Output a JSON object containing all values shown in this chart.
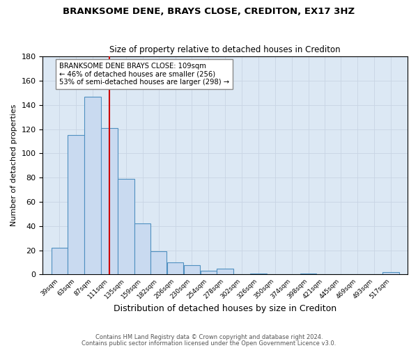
{
  "title": "BRANKSOME DENE, BRAYS CLOSE, CREDITON, EX17 3HZ",
  "subtitle": "Size of property relative to detached houses in Crediton",
  "xlabel": "Distribution of detached houses by size in Crediton",
  "ylabel": "Number of detached properties",
  "bin_labels": [
    "39sqm",
    "63sqm",
    "87sqm",
    "111sqm",
    "135sqm",
    "159sqm",
    "182sqm",
    "206sqm",
    "230sqm",
    "254sqm",
    "278sqm",
    "302sqm",
    "326sqm",
    "350sqm",
    "374sqm",
    "398sqm",
    "421sqm",
    "445sqm",
    "469sqm",
    "493sqm",
    "517sqm"
  ],
  "tick_positions": [
    39,
    63,
    87,
    111,
    135,
    159,
    182,
    206,
    230,
    254,
    278,
    302,
    326,
    350,
    374,
    398,
    421,
    445,
    469,
    493,
    517
  ],
  "counts": [
    22,
    115,
    147,
    121,
    79,
    42,
    19,
    10,
    8,
    3,
    5,
    0,
    1,
    0,
    0,
    1,
    0,
    0,
    0,
    0,
    2
  ],
  "bar_facecolor": "#c9daf0",
  "bar_edgecolor": "#4f90c0",
  "grid_color": "#c8d4e4",
  "bg_color": "#dce8f4",
  "marker_x": 111,
  "marker_color": "#cc0000",
  "annotation_text": "BRANKSOME DENE BRAYS CLOSE: 109sqm\n← 46% of detached houses are smaller (256)\n53% of semi-detached houses are larger (298) →",
  "annotation_box_color": "#ffffff",
  "annotation_box_edge": "#888888",
  "ylim": [
    0,
    180
  ],
  "yticks": [
    0,
    20,
    40,
    60,
    80,
    100,
    120,
    140,
    160,
    180
  ],
  "xlim_left": 15,
  "xlim_right": 541,
  "footer1": "Contains HM Land Registry data © Crown copyright and database right 2024.",
  "footer2": "Contains public sector information licensed under the Open Government Licence v3.0."
}
